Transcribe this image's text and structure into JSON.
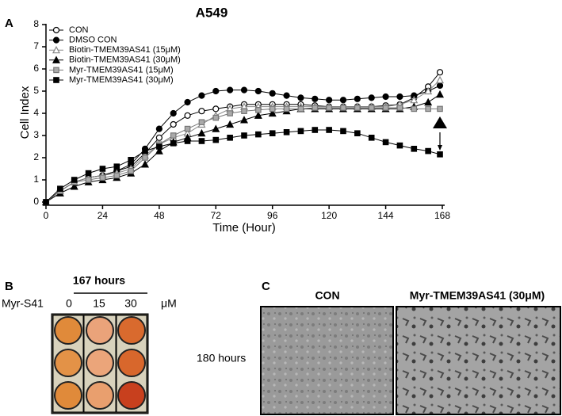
{
  "chart_data": {
    "type": "line",
    "title": "A549",
    "xlabel": "Time (Hour)",
    "ylabel": "Cell Index",
    "x": [
      0,
      6,
      12,
      18,
      24,
      30,
      36,
      42,
      48,
      54,
      60,
      66,
      72,
      78,
      84,
      90,
      96,
      102,
      108,
      114,
      120,
      126,
      132,
      138,
      144,
      150,
      156,
      162,
      167
    ],
    "xlim": [
      0,
      168
    ],
    "xticks": [
      0,
      24,
      48,
      72,
      96,
      120,
      144,
      168
    ],
    "ylim": [
      0,
      8
    ],
    "yticks": [
      0,
      1,
      2,
      3,
      4,
      5,
      6,
      7,
      8
    ],
    "legend": "upper left",
    "series": [
      {
        "name": "CON",
        "color": "#000000",
        "fill": "#ffffff",
        "marker": "circle",
        "values": [
          0,
          0.5,
          0.9,
          1.1,
          1.2,
          1.4,
          1.6,
          2.2,
          2.9,
          3.5,
          3.9,
          4.1,
          4.2,
          4.3,
          4.4,
          4.4,
          4.4,
          4.4,
          4.4,
          4.35,
          4.3,
          4.3,
          4.3,
          4.3,
          4.35,
          4.4,
          4.7,
          5.2,
          5.85
        ]
      },
      {
        "name": "DMSO CON",
        "color": "#000000",
        "fill": "#000000",
        "marker": "circle",
        "values": [
          0,
          0.5,
          0.9,
          1.1,
          1.2,
          1.4,
          1.7,
          2.4,
          3.3,
          4.0,
          4.5,
          4.8,
          5.0,
          5.05,
          5.05,
          5.0,
          4.9,
          4.8,
          4.7,
          4.65,
          4.6,
          4.6,
          4.65,
          4.7,
          4.75,
          4.75,
          4.8,
          5.0,
          5.25
        ]
      },
      {
        "name": "Biotin-TMEM39AS41 (15μM)",
        "color": "#888888",
        "fill": "#ffffff",
        "marker": "triangle",
        "values": [
          0,
          0.5,
          0.9,
          1.1,
          1.2,
          1.3,
          1.5,
          2.1,
          2.6,
          2.9,
          3.1,
          3.5,
          3.9,
          4.2,
          4.3,
          4.3,
          4.3,
          4.3,
          4.3,
          4.3,
          4.3,
          4.3,
          4.3,
          4.3,
          4.3,
          4.4,
          4.6,
          5.0,
          5.5
        ]
      },
      {
        "name": "Biotin-TMEM39AS41 (30μM)",
        "color": "#000000",
        "fill": "#000000",
        "marker": "triangle",
        "values": [
          0,
          0.4,
          0.7,
          0.9,
          1.0,
          1.1,
          1.3,
          1.7,
          2.3,
          2.7,
          2.9,
          3.1,
          3.3,
          3.5,
          3.7,
          3.9,
          4.0,
          4.1,
          4.2,
          4.2,
          4.2,
          4.2,
          4.2,
          4.2,
          4.2,
          4.2,
          4.3,
          4.5,
          4.85
        ]
      },
      {
        "name": "Myr-TMEM39AS41 (15μM)",
        "color": "#777777",
        "fill": "#aaaaaa",
        "marker": "square",
        "values": [
          0,
          0.5,
          0.9,
          1.0,
          1.1,
          1.2,
          1.4,
          2.0,
          2.6,
          3.0,
          3.3,
          3.6,
          3.8,
          4.0,
          4.1,
          4.15,
          4.2,
          4.2,
          4.2,
          4.25,
          4.25,
          4.25,
          4.25,
          4.25,
          4.25,
          4.25,
          4.2,
          4.2,
          4.2
        ]
      },
      {
        "name": "Myr-TMEM39AS41 (30μM)",
        "color": "#000000",
        "fill": "#000000",
        "marker": "square",
        "values": [
          0,
          0.6,
          1.0,
          1.3,
          1.5,
          1.6,
          1.9,
          2.3,
          2.5,
          2.65,
          2.75,
          2.75,
          2.8,
          2.9,
          3.0,
          3.05,
          3.1,
          3.15,
          3.2,
          3.25,
          3.25,
          3.2,
          3.1,
          2.9,
          2.7,
          2.55,
          2.4,
          2.3,
          2.15
        ]
      }
    ]
  },
  "panel_labels": [
    "A",
    "B",
    "C"
  ],
  "panel_b": {
    "title": "167 hours",
    "row_label": "Myr-S41",
    "columns": [
      0,
      15,
      30
    ],
    "unit": "μM"
  },
  "panel_c": {
    "row_label": "180 hours",
    "columns": [
      "CON",
      "Myr-TMEM39AS41 (30μM)"
    ]
  }
}
